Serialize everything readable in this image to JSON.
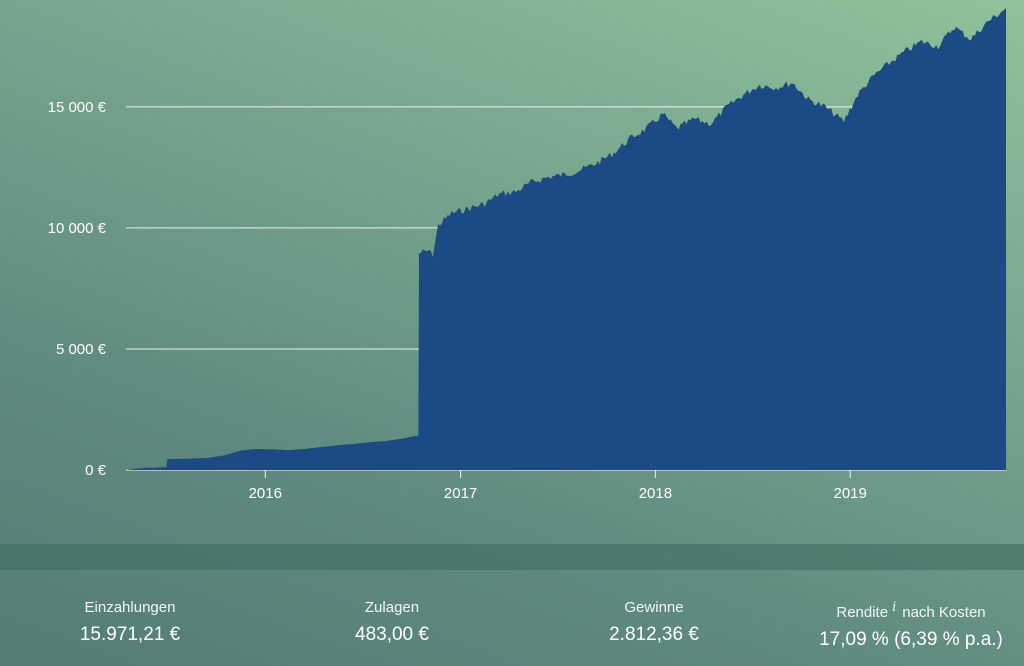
{
  "chart_data": {
    "type": "area",
    "title": "",
    "xlabel": "",
    "ylabel": "",
    "ylim": [
      0,
      19000
    ],
    "xlim": [
      "2015-04-15",
      "2019-10-20"
    ],
    "y_ticks": [
      0,
      5000,
      10000,
      15000
    ],
    "y_tick_labels": [
      "0 €",
      "5 000 €",
      "10 000 €",
      "15 000 €"
    ],
    "x_ticks": [
      "2016-01-01",
      "2017-01-01",
      "2018-01-01",
      "2019-01-01"
    ],
    "x_tick_labels": [
      "2016",
      "2017",
      "2018",
      "2019"
    ],
    "grid": "horizontal",
    "color": "#1b4a85",
    "series": [
      {
        "values": [
          [
            "2015-04-15",
            0
          ],
          [
            "2015-05-15",
            80
          ],
          [
            "2015-06-30",
            120
          ],
          [
            "2015-07-01",
            450
          ],
          [
            "2015-08-01",
            460
          ],
          [
            "2015-09-15",
            500
          ],
          [
            "2015-10-15",
            600
          ],
          [
            "2015-11-15",
            800
          ],
          [
            "2015-12-15",
            870
          ],
          [
            "2016-01-15",
            850
          ],
          [
            "2016-02-15",
            820
          ],
          [
            "2016-03-15",
            870
          ],
          [
            "2016-04-15",
            950
          ],
          [
            "2016-05-15",
            1020
          ],
          [
            "2016-06-15",
            1080
          ],
          [
            "2016-07-15",
            1150
          ],
          [
            "2016-08-15",
            1200
          ],
          [
            "2016-09-15",
            1300
          ],
          [
            "2016-10-01",
            1380
          ],
          [
            "2016-10-14",
            1420
          ],
          [
            "2016-10-15",
            8950
          ],
          [
            "2016-11-01",
            9050
          ],
          [
            "2016-11-10",
            8900
          ],
          [
            "2016-11-20",
            10100
          ],
          [
            "2016-12-15",
            10600
          ],
          [
            "2017-01-15",
            10800
          ],
          [
            "2017-02-15",
            11000
          ],
          [
            "2017-03-15",
            11400
          ],
          [
            "2017-04-15",
            11500
          ],
          [
            "2017-05-15",
            11900
          ],
          [
            "2017-06-15",
            12100
          ],
          [
            "2017-07-15",
            12200
          ],
          [
            "2017-08-15",
            12400
          ],
          [
            "2017-09-15",
            12700
          ],
          [
            "2017-10-15",
            13100
          ],
          [
            "2017-11-15",
            13700
          ],
          [
            "2017-12-15",
            14100
          ],
          [
            "2018-01-15",
            14700
          ],
          [
            "2018-02-10",
            14100
          ],
          [
            "2018-03-15",
            14500
          ],
          [
            "2018-04-15",
            14300
          ],
          [
            "2018-05-15",
            15000
          ],
          [
            "2018-06-15",
            15500
          ],
          [
            "2018-07-15",
            15900
          ],
          [
            "2018-08-15",
            15800
          ],
          [
            "2018-09-15",
            16000
          ],
          [
            "2018-10-15",
            15300
          ],
          [
            "2018-11-15",
            15000
          ],
          [
            "2018-12-20",
            14400
          ],
          [
            "2019-01-15",
            15500
          ],
          [
            "2019-02-15",
            16300
          ],
          [
            "2019-03-15",
            16800
          ],
          [
            "2019-04-15",
            17300
          ],
          [
            "2019-05-15",
            17700
          ],
          [
            "2019-06-15",
            17500
          ],
          [
            "2019-07-15",
            18300
          ],
          [
            "2019-08-15",
            17800
          ],
          [
            "2019-09-15",
            18500
          ],
          [
            "2019-10-10",
            18900
          ],
          [
            "2019-10-20",
            19100
          ]
        ]
      }
    ]
  },
  "stats": [
    {
      "label": "Einzahlungen",
      "value": "15.971,21 €"
    },
    {
      "label": "Zulagen",
      "value": "483,00 €"
    },
    {
      "label": "Gewinne",
      "value": "2.812,36 €"
    },
    {
      "label": "Rendite",
      "info": "i",
      "label_suffix": "nach Kosten",
      "value": "17,09 % (6,39 % p.a.)"
    }
  ]
}
